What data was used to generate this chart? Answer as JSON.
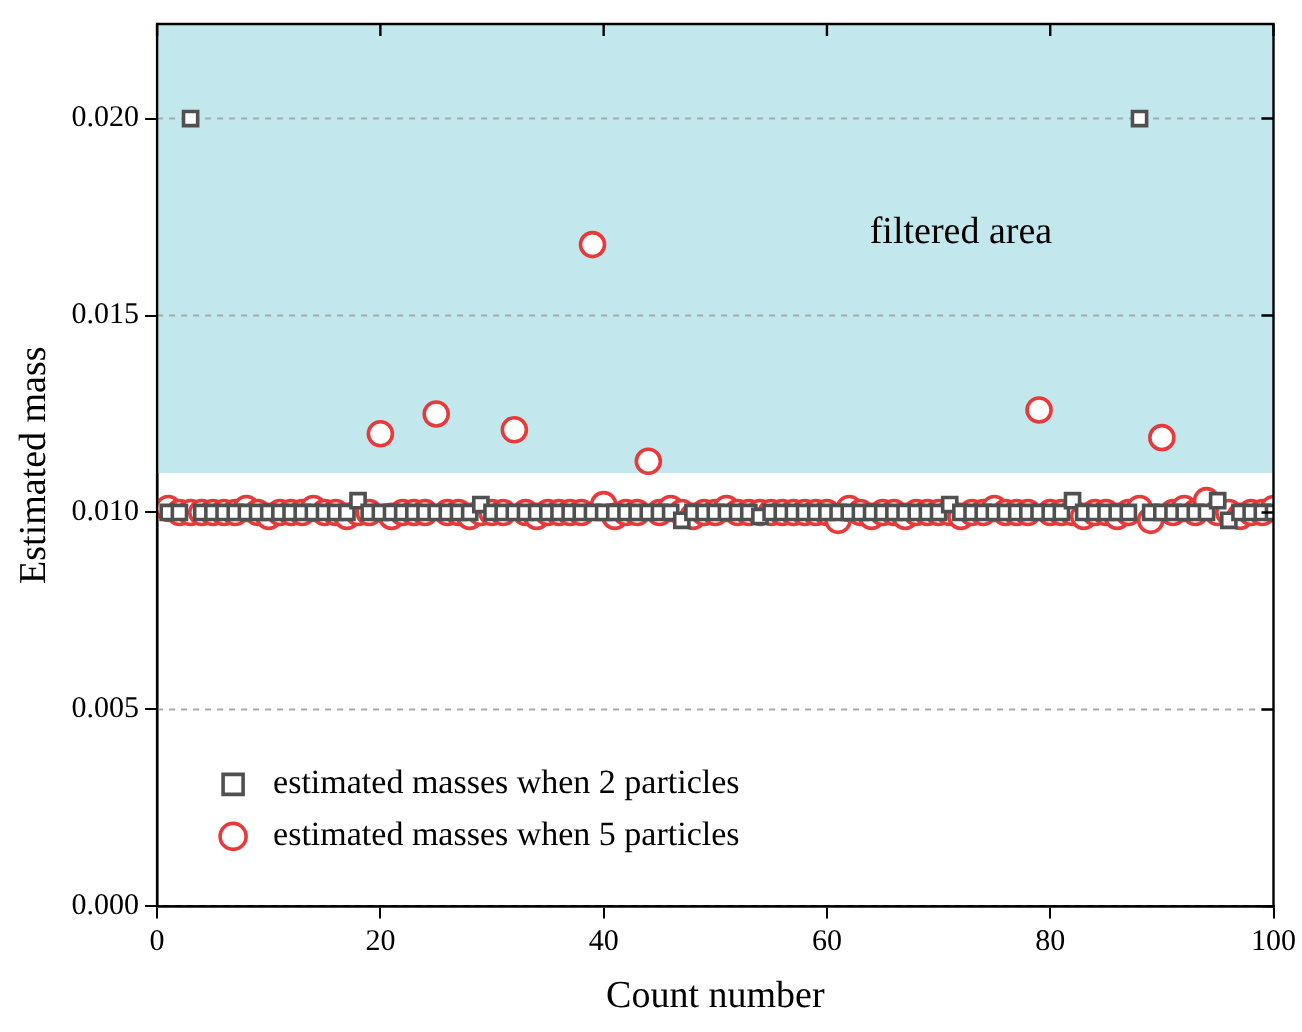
{
  "chart_data": {
    "type": "scatter",
    "xlabel": "Count number",
    "ylabel": "Estimated mass",
    "x": [
      1,
      2,
      3,
      4,
      5,
      6,
      7,
      8,
      9,
      10,
      11,
      12,
      13,
      14,
      15,
      16,
      17,
      18,
      19,
      20,
      21,
      22,
      23,
      24,
      25,
      26,
      27,
      28,
      29,
      30,
      31,
      32,
      33,
      34,
      35,
      36,
      37,
      38,
      39,
      40,
      41,
      42,
      43,
      44,
      45,
      46,
      47,
      48,
      49,
      50,
      51,
      52,
      53,
      54,
      55,
      56,
      57,
      58,
      59,
      60,
      61,
      62,
      63,
      64,
      65,
      66,
      67,
      68,
      69,
      70,
      71,
      72,
      73,
      74,
      75,
      76,
      77,
      78,
      79,
      80,
      81,
      82,
      83,
      84,
      85,
      86,
      87,
      88,
      89,
      90,
      91,
      92,
      93,
      94,
      95,
      96,
      97,
      98,
      99,
      100
    ],
    "series": [
      {
        "name": "estimated masses when 2 particles",
        "color": "#505050",
        "marker": "square",
        "values": [
          0.01,
          0.01,
          0.02,
          0.01,
          0.01,
          0.01,
          0.01,
          0.01,
          0.01,
          0.01,
          0.01,
          0.01,
          0.01,
          0.01,
          0.01,
          0.01,
          0.01,
          0.0103,
          0.01,
          0.01,
          0.01,
          0.01,
          0.01,
          0.01,
          0.01,
          0.01,
          0.01,
          0.01,
          0.0102,
          0.01,
          0.01,
          0.01,
          0.01,
          0.01,
          0.01,
          0.01,
          0.01,
          0.01,
          0.01,
          0.01,
          0.01,
          0.01,
          0.01,
          0.01,
          0.01,
          0.01,
          0.0098,
          0.01,
          0.01,
          0.01,
          0.01,
          0.01,
          0.01,
          0.0099,
          0.01,
          0.01,
          0.01,
          0.01,
          0.01,
          0.01,
          0.01,
          0.01,
          0.01,
          0.01,
          0.01,
          0.01,
          0.01,
          0.01,
          0.01,
          0.01,
          0.0102,
          0.01,
          0.01,
          0.01,
          0.01,
          0.01,
          0.01,
          0.01,
          0.01,
          0.01,
          0.01,
          0.0103,
          0.01,
          0.01,
          0.01,
          0.01,
          0.01,
          0.02,
          0.01,
          0.01,
          0.01,
          0.01,
          0.01,
          0.01,
          0.0103,
          0.0098,
          0.01,
          0.01,
          0.01,
          0.01
        ]
      },
      {
        "name": "estimated masses when 5 particles",
        "color": "#e83a3a",
        "marker": "circle",
        "values": [
          0.0101,
          0.01,
          0.01,
          0.01,
          0.01,
          0.01,
          0.01,
          0.0101,
          0.01,
          0.0099,
          0.01,
          0.01,
          0.01,
          0.0101,
          0.01,
          0.01,
          0.0099,
          0.01,
          0.01,
          0.012,
          0.0099,
          0.01,
          0.01,
          0.01,
          0.0125,
          0.01,
          0.01,
          0.0099,
          0.01,
          0.01,
          0.01,
          0.0121,
          0.01,
          0.0099,
          0.01,
          0.01,
          0.01,
          0.01,
          0.0168,
          0.0102,
          0.0099,
          0.01,
          0.01,
          0.0113,
          0.01,
          0.0101,
          0.01,
          0.0099,
          0.01,
          0.01,
          0.0101,
          0.01,
          0.01,
          0.01,
          0.01,
          0.01,
          0.01,
          0.01,
          0.01,
          0.01,
          0.0098,
          0.0101,
          0.01,
          0.0099,
          0.01,
          0.01,
          0.0099,
          0.01,
          0.01,
          0.01,
          0.01,
          0.0099,
          0.01,
          0.01,
          0.0101,
          0.01,
          0.01,
          0.01,
          0.0126,
          0.01,
          0.01,
          0.01,
          0.0099,
          0.01,
          0.01,
          0.0099,
          0.01,
          0.0101,
          0.0098,
          0.0119,
          0.01,
          0.0101,
          0.01,
          0.0103,
          0.01,
          0.01,
          0.0099,
          0.01,
          0.01,
          0.0101
        ]
      }
    ],
    "xlim": [
      0,
      100
    ],
    "xticks": [
      0,
      20,
      40,
      60,
      80,
      100
    ],
    "ylim": [
      0,
      0.0224
    ],
    "yticks": [
      {
        "value": 0,
        "label": "0.000"
      },
      0.005,
      {
        "value": 0.01,
        "label": "0.010"
      },
      0.015,
      {
        "value": 0.02,
        "label": "0.020"
      }
    ],
    "bands": [
      {
        "axis": "y",
        "from": 0.011,
        "to": 0.0224,
        "label": "filtered area",
        "color": "#c2e7ed"
      }
    ],
    "grid": "y",
    "legend": "bottom left"
  }
}
